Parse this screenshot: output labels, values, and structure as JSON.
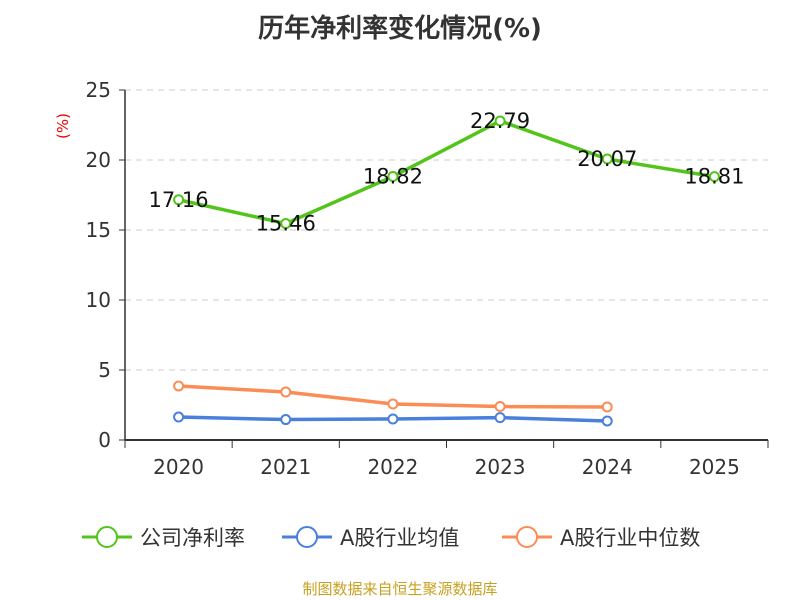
{
  "chart_data": {
    "type": "line",
    "title": "历年净利率变化情况(%)",
    "ylabel": "(%)",
    "categories": [
      "2020",
      "2021",
      "2022",
      "2023",
      "2024",
      "2025"
    ],
    "ylim": [
      0,
      25
    ],
    "yticks": [
      0,
      5,
      10,
      15,
      20,
      25
    ],
    "grid": true,
    "legend": "bottom",
    "series": [
      {
        "name": "公司净利率",
        "color": "#52c41a",
        "values": [
          17.16,
          15.46,
          18.82,
          22.79,
          20.07,
          18.81
        ],
        "labels": [
          "17.16",
          "15.46",
          "18.82",
          "22.79",
          "20.07",
          "18.81"
        ]
      },
      {
        "name": "A股行业均值",
        "color": "#4a7fdc",
        "values": [
          1.64,
          1.46,
          1.5,
          1.6,
          1.36,
          null
        ]
      },
      {
        "name": "A股行业中位数",
        "color": "#fb8c55",
        "values": [
          3.86,
          3.43,
          2.57,
          2.39,
          2.36,
          null
        ]
      }
    ]
  },
  "source": "制图数据来自恒生聚源数据库"
}
